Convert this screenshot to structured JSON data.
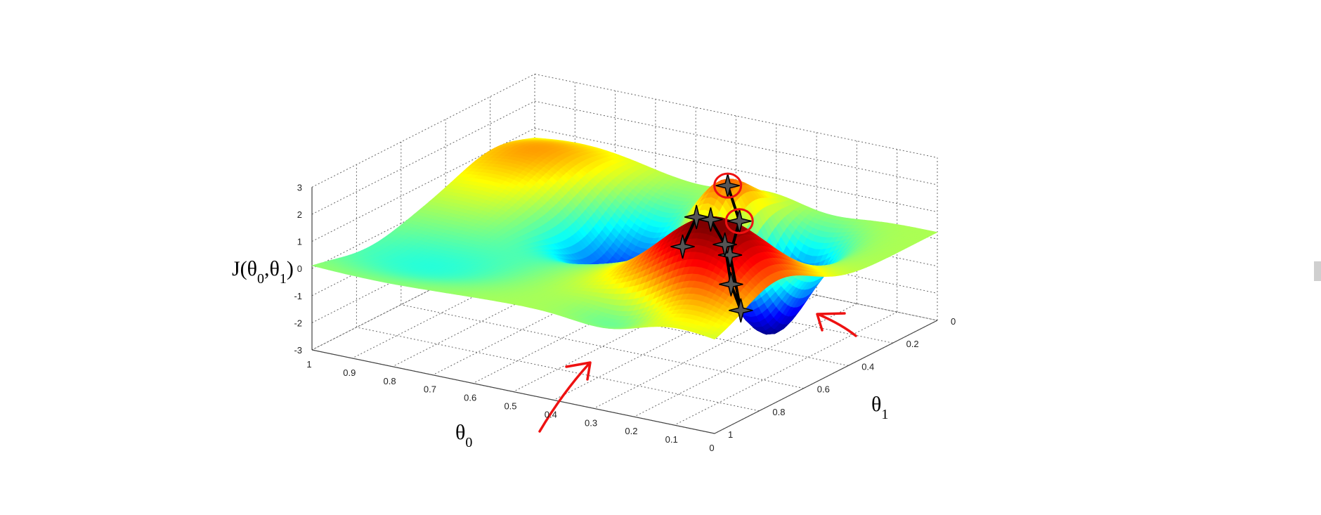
{
  "chart_data": {
    "type": "surface",
    "xlabel": "θ0",
    "ylabel": "θ1",
    "zlabel": "J(θ0,θ1)",
    "xlim": [
      0,
      1
    ],
    "ylim": [
      0,
      1
    ],
    "zlim": [
      -3,
      3
    ],
    "x_ticks": [
      "1",
      "0.9",
      "0.8",
      "0.7",
      "0.6",
      "0.5",
      "0.4",
      "0.3",
      "0.2",
      "0.1",
      "0"
    ],
    "y_ticks": [
      "0",
      "0.2",
      "0.4",
      "0.6",
      "0.8",
      "1"
    ],
    "z_ticks": [
      "3",
      "2",
      "1",
      "0",
      "-1",
      "-2",
      "-3"
    ],
    "grid": true,
    "colormap": [
      "#00008f",
      "#0000ff",
      "#00ffff",
      "#ffff00",
      "#ff0000",
      "#800000"
    ],
    "descent_path_1": [
      [
        0.37,
        0.22
      ],
      [
        0.36,
        0.28
      ],
      [
        0.3,
        0.34
      ],
      [
        0.28,
        0.42
      ],
      [
        0.24,
        0.52
      ],
      [
        0.22,
        0.62
      ],
      [
        0.2,
        0.72
      ],
      [
        0.19,
        0.8
      ]
    ],
    "descent_path_2": [
      [
        0.37,
        0.22
      ],
      [
        0.41,
        0.2
      ]
    ],
    "annotation_color": "#ee1111"
  }
}
